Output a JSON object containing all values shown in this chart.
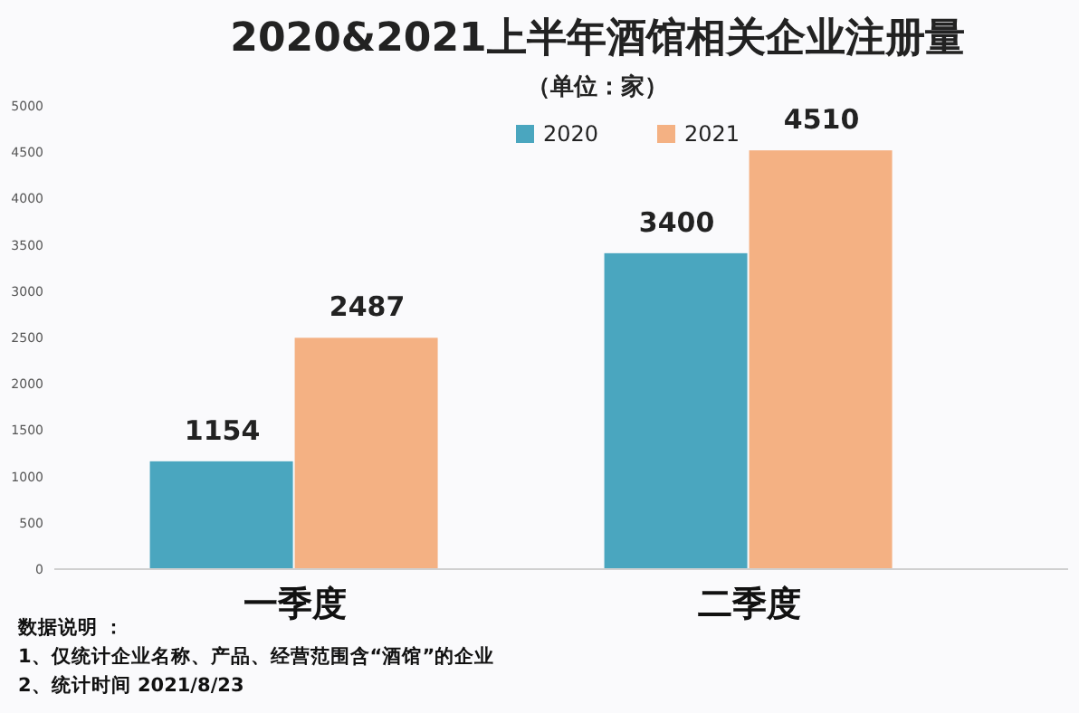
{
  "chart_data": {
    "type": "bar",
    "title": "2020&2021上半年酒馆相关企业注册量",
    "subtitle": "（单位：家）",
    "categories": [
      "一季度",
      "二季度"
    ],
    "series": [
      {
        "name": "2020",
        "color": "#4aa6bf",
        "values": [
          1154,
          3400
        ]
      },
      {
        "name": "2021",
        "color": "#f4b183",
        "values": [
          2487,
          4510
        ]
      }
    ],
    "ylim": [
      0,
      5000
    ],
    "yticks": [
      0,
      500,
      1000,
      1500,
      2000,
      2500,
      3000,
      3500,
      4000,
      4500,
      5000
    ],
    "data_labels": true,
    "grid": false,
    "legend": "top",
    "annotations": [
      "数据说明 ：",
      "1、仅统计企业名称、产品、经营范围含“酒馆”的企业",
      "2、统计时间 2021/8/23"
    ]
  }
}
